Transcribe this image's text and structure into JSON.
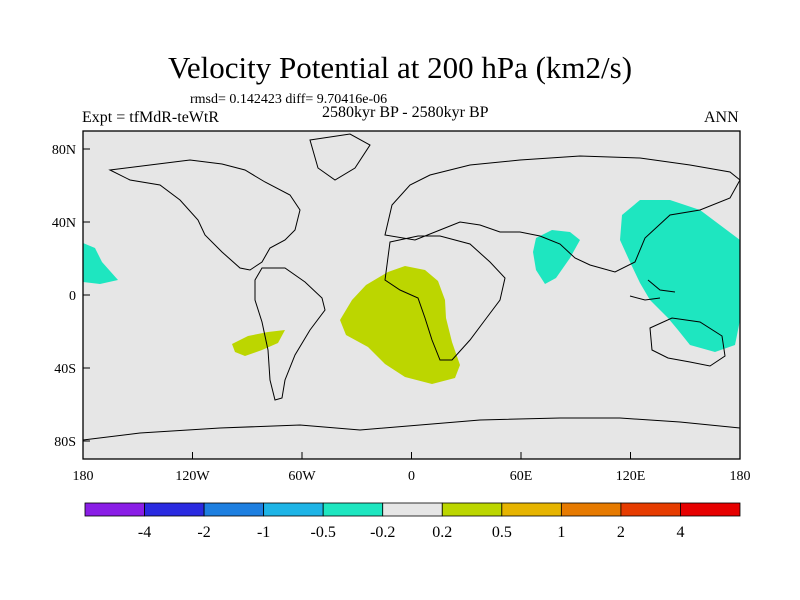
{
  "title": "Velocity Potential at 200 hPa (km2/s)",
  "stats": "rmsd= 0.142423 diff= 9.70416e-06",
  "expt": "Expt = tfMdR-teWtR",
  "period": "2580kyr BP - 2580kyr BP",
  "season": "ANN",
  "lon_ticks": [
    "180",
    "120W",
    "60W",
    "0",
    "60E",
    "120E",
    "180"
  ],
  "lat_ticks": [
    "80N",
    "40N",
    "0",
    "40S",
    "80S"
  ],
  "colorbar": {
    "labels": [
      "-4",
      "-2",
      "-1",
      "-0.5",
      "-0.2",
      "0.2",
      "0.5",
      "1",
      "2",
      "4"
    ],
    "colors": [
      "#8a1ee6",
      "#2a2ae0",
      "#1e7fe0",
      "#1eb4e6",
      "#1ee6c0",
      "#e6e6e6",
      "#bcd600",
      "#e6b400",
      "#e67a00",
      "#e63c00",
      "#e60000"
    ]
  },
  "colors": {
    "ocean_land_bg": "#e6e6e6",
    "positive_anomaly": "#bcd600",
    "negative_anomaly": "#1ee6c0"
  }
}
